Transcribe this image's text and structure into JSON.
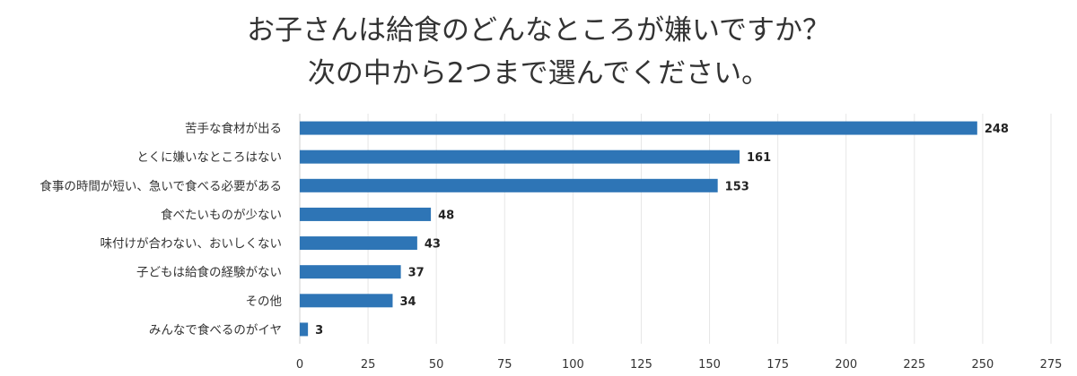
{
  "chart_data": {
    "type": "bar",
    "orientation": "horizontal",
    "title": "お子さんは給食のどんなところが嫌いですか？",
    "subtitle": "次の中から2つまで選んでください。",
    "categories": [
      "苦手な食材が出る",
      "とくに嫌いなところはない",
      "食事の時間が短い、急いで食べる必要がある",
      "食べたいものが少ない",
      "味付けが合わない、おいしくない",
      "子どもは給食の経験がない",
      "その他",
      "みんなで食べるのがイヤ"
    ],
    "values": [
      248,
      161,
      153,
      48,
      43,
      37,
      34,
      3
    ],
    "xlim": [
      0,
      275
    ],
    "xticks": [
      0,
      25,
      50,
      75,
      100,
      125,
      150,
      175,
      200,
      225,
      250,
      275
    ],
    "xlabel": "",
    "ylabel": "",
    "grid": "vertical",
    "bar_color": "#2e75b6",
    "grid_color": "#e6e6e6"
  }
}
